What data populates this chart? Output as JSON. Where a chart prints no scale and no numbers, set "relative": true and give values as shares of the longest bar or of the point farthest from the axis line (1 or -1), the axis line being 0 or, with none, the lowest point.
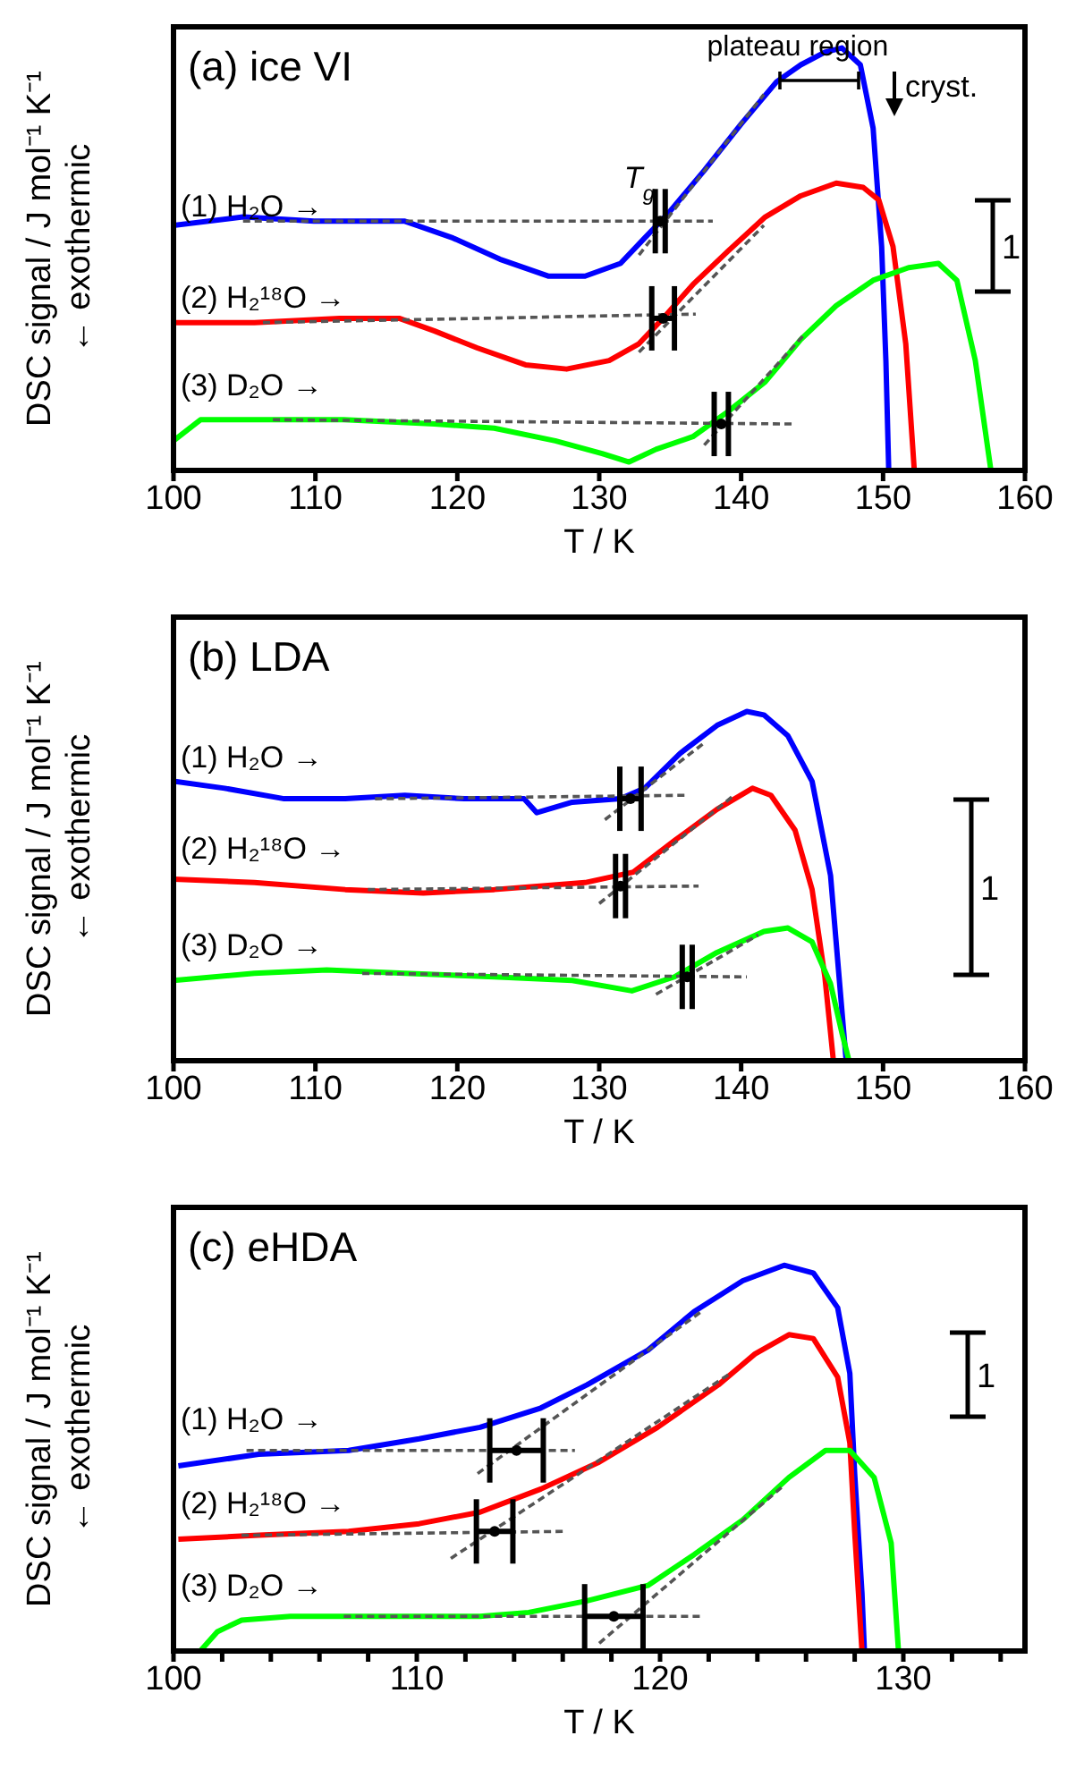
{
  "chart_data": [
    {
      "type": "line",
      "title": "(a) ice VI",
      "xlabel": "T / K",
      "ylabel": "DSC signal / J mol⁻¹ K⁻¹",
      "relative": true,
      "xlim": [
        100,
        160
      ],
      "xticks": [
        100,
        110,
        120,
        130,
        140,
        150,
        160
      ],
      "line_style": "solid",
      "annotations": [
        "plateau region",
        "cryst.",
        {
          "text": "T$_{g}$",
          "x": 133.9,
          "y": 0.67
        },
        "1",
        "← exothermic"
      ],
      "series": [
        {
          "name": "(1) H₂O →",
          "color": "#0000ff",
          "x": [
            100,
            104.9,
            109.9,
            116.3,
            119.7,
            123.0,
            126.4,
            129.0,
            131.5,
            133.2,
            134.9,
            137.4,
            140.0,
            142.5,
            144.2,
            145.9,
            147.1,
            148.4,
            149.3,
            149.9,
            150.2,
            150.4
          ],
          "values": [
            0.58,
            0.6,
            0.59,
            0.59,
            0.55,
            0.5,
            0.46,
            0.46,
            0.49,
            0.55,
            0.61,
            0.71,
            0.82,
            0.92,
            0.96,
            0.99,
            1.0,
            0.96,
            0.81,
            0.53,
            0.26,
            0
          ]
        },
        {
          "name": "(2) H₂¹⁸O →",
          "color": "#ff0000",
          "x": [
            100,
            105.7,
            111.7,
            115.9,
            118.4,
            121.4,
            124.8,
            127.7,
            130.7,
            132.8,
            134.5,
            136.6,
            139.1,
            141.7,
            144.2,
            146.7,
            148.6,
            149.7,
            150.7,
            151.6,
            152.2
          ],
          "values": [
            0.35,
            0.35,
            0.36,
            0.36,
            0.33,
            0.29,
            0.25,
            0.24,
            0.26,
            0.3,
            0.36,
            0.44,
            0.52,
            0.6,
            0.65,
            0.68,
            0.67,
            0.64,
            0.53,
            0.3,
            0
          ]
        },
        {
          "name": "(3) D₂O →",
          "color": "#00ff00",
          "x": [
            100,
            101.9,
            105.7,
            112.0,
            118.4,
            122.6,
            126.9,
            130.2,
            132.1,
            134.0,
            136.6,
            139.1,
            141.7,
            144.2,
            146.7,
            149.3,
            151.8,
            153.9,
            155.2,
            156.5,
            157.6
          ],
          "values": [
            0.07,
            0.12,
            0.12,
            0.12,
            0.11,
            0.1,
            0.07,
            0.04,
            0.02,
            0.05,
            0.08,
            0.14,
            0.21,
            0.31,
            0.39,
            0.45,
            0.48,
            0.49,
            0.45,
            0.26,
            0
          ]
        },
        {
          "type": "line",
          "color": "#555555",
          "line_style": "dashed",
          "x": [
            104.9,
            138.0
          ],
          "values": [
            0.59,
            0.59
          ]
        },
        {
          "type": "line",
          "color": "#555555",
          "line_style": "dashed",
          "x": [
            132.8,
            141.6
          ],
          "values": [
            0.51,
            0.89
          ]
        },
        {
          "type": "line",
          "color": "#555555",
          "line_style": "dashed",
          "x": [
            106.3,
            136.8
          ],
          "values": [
            0.35,
            0.37
          ]
        },
        {
          "type": "line",
          "color": "#555555",
          "line_style": "dashed",
          "x": [
            132.8,
            141.6
          ],
          "values": [
            0.28,
            0.58
          ]
        },
        {
          "type": "line",
          "color": "#555555",
          "line_style": "dashed",
          "x": [
            107.0,
            143.6
          ],
          "values": [
            0.12,
            0.11
          ]
        },
        {
          "type": "line",
          "color": "#555555",
          "line_style": "dashed",
          "x": [
            137.4,
            144.4
          ],
          "values": [
            0.06,
            0.32
          ]
        },
        {
          "type": "scatter",
          "color": "#000000",
          "marker": "circle",
          "x": [
            134.3,
            134.5,
            138.6
          ],
          "values": [
            0.59,
            0.36,
            0.11
          ],
          "xerrors": [
            0.35,
            0.8,
            0.5
          ]
        }
      ]
    },
    {
      "type": "line",
      "title": "(b) LDA",
      "xlabel": "T / K",
      "ylabel": "DSC signal / J mol⁻¹ K⁻¹",
      "relative": true,
      "xlim": [
        100,
        160
      ],
      "xticks": [
        100,
        110,
        120,
        130,
        140,
        150,
        160
      ],
      "line_style": "solid",
      "annotations": [
        "1",
        "← exothermic"
      ],
      "series": [
        {
          "name": "(1) H₂O →",
          "color": "#0000ff",
          "x": [
            100,
            103.6,
            107.8,
            112.1,
            116.3,
            120.5,
            124.7,
            125.6,
            128.1,
            131.5,
            133.2,
            135.7,
            138.3,
            140.4,
            141.6,
            143.3,
            145.0,
            146.3,
            146.9,
            147.4
          ],
          "values": [
            0.8,
            0.78,
            0.75,
            0.75,
            0.76,
            0.75,
            0.75,
            0.71,
            0.74,
            0.75,
            0.78,
            0.88,
            0.96,
            1.0,
            0.99,
            0.93,
            0.8,
            0.53,
            0.24,
            0
          ]
        },
        {
          "name": "(2) H₂¹⁸O →",
          "color": "#ff0000",
          "x": [
            100,
            105.7,
            112.1,
            117.6,
            122.6,
            129.0,
            132.4,
            135.3,
            138.3,
            140.8,
            142.1,
            143.8,
            145.0,
            145.9,
            146.5
          ],
          "values": [
            0.52,
            0.51,
            0.49,
            0.48,
            0.49,
            0.51,
            0.54,
            0.63,
            0.72,
            0.78,
            0.76,
            0.66,
            0.49,
            0.24,
            0
          ]
        },
        {
          "name": "(3) D₂O →",
          "color": "#00ff00",
          "x": [
            100,
            105.7,
            110.8,
            116.3,
            122.6,
            128.1,
            132.3,
            135.3,
            138.3,
            141.6,
            143.3,
            145.0,
            146.3,
            147.1,
            147.6
          ],
          "values": [
            0.23,
            0.25,
            0.26,
            0.25,
            0.24,
            0.23,
            0.2,
            0.24,
            0.31,
            0.37,
            0.38,
            0.34,
            0.22,
            0.08,
            0
          ]
        },
        {
          "type": "line",
          "color": "#555555",
          "line_style": "dashed",
          "x": [
            114.2,
            136.2
          ],
          "values": [
            0.75,
            0.76
          ]
        },
        {
          "type": "line",
          "color": "#555555",
          "line_style": "dashed",
          "x": [
            130.4,
            137.4
          ],
          "values": [
            0.69,
            0.91
          ]
        },
        {
          "type": "line",
          "color": "#555555",
          "line_style": "dashed",
          "x": [
            113.7,
            137.0
          ],
          "values": [
            0.49,
            0.5
          ]
        },
        {
          "type": "line",
          "color": "#555555",
          "line_style": "dashed",
          "x": [
            130.0,
            139.5
          ],
          "values": [
            0.45,
            0.76
          ]
        },
        {
          "type": "line",
          "color": "#555555",
          "line_style": "dashed",
          "x": [
            113.3,
            140.4
          ],
          "values": [
            0.25,
            0.24
          ]
        },
        {
          "type": "line",
          "color": "#555555",
          "line_style": "dashed",
          "x": [
            134.0,
            141.2
          ],
          "values": [
            0.19,
            0.36
          ]
        },
        {
          "type": "scatter",
          "color": "#000000",
          "marker": "circle",
          "x": [
            132.2,
            131.5,
            136.2
          ],
          "values": [
            0.75,
            0.5,
            0.24
          ],
          "xerrors": [
            0.75,
            0.35,
            0.35
          ]
        }
      ]
    },
    {
      "type": "line",
      "title": "(c) eHDA",
      "xlabel": "T / K",
      "ylabel": "DSC signal / J mol⁻¹ K⁻¹",
      "relative": true,
      "xlim": [
        100,
        135
      ],
      "xticks": [
        100,
        {
          "value": 102,
          "label": null
        },
        {
          "value": 104,
          "label": null
        },
        {
          "value": 106,
          "label": null
        },
        {
          "value": 108,
          "label": null
        },
        110,
        {
          "value": 112,
          "label": null
        },
        {
          "value": 114,
          "label": null
        },
        {
          "value": 116,
          "label": null
        },
        {
          "value": 118,
          "label": null
        },
        120,
        {
          "value": 122,
          "label": null
        },
        {
          "value": 124,
          "label": null
        },
        {
          "value": 126,
          "label": null
        },
        {
          "value": 128,
          "label": null
        },
        130,
        {
          "value": 132,
          "label": null
        },
        {
          "value": 134,
          "label": null
        }
      ],
      "line_style": "solid",
      "annotations": [
        "1",
        "← exothermic"
      ],
      "series": [
        {
          "name": "(1) H₂O →",
          "color": "#0000ff",
          "x": [
            100.2,
            103.5,
            107.2,
            110.1,
            112.6,
            115.1,
            117.0,
            119.5,
            121.4,
            123.4,
            125.1,
            126.3,
            127.3,
            127.8,
            128.0,
            128.3,
            128.4
          ],
          "values": [
            0.48,
            0.51,
            0.52,
            0.55,
            0.58,
            0.63,
            0.69,
            0.78,
            0.88,
            0.96,
            1.0,
            0.98,
            0.89,
            0.72,
            0.46,
            0.15,
            0
          ]
        },
        {
          "name": "(2) H₂¹⁸O →",
          "color": "#ff0000",
          "x": [
            100.2,
            103.5,
            107.2,
            110.1,
            112.6,
            115.1,
            117.5,
            119.9,
            122.4,
            123.9,
            125.3,
            126.3,
            127.3,
            127.8,
            128.0,
            128.3
          ],
          "values": [
            0.29,
            0.3,
            0.31,
            0.33,
            0.36,
            0.42,
            0.49,
            0.58,
            0.69,
            0.77,
            0.82,
            0.81,
            0.71,
            0.54,
            0.31,
            0
          ]
        },
        {
          "name": "(3) D₂O →",
          "color": "#00ff00",
          "x": [
            101.1,
            101.8,
            102.8,
            104.8,
            108.4,
            112.6,
            114.6,
            117.0,
            119.5,
            121.4,
            123.4,
            125.3,
            126.8,
            127.8,
            128.8,
            129.5,
            129.8
          ],
          "values": [
            0,
            0.05,
            0.08,
            0.09,
            0.09,
            0.09,
            0.1,
            0.13,
            0.17,
            0.25,
            0.34,
            0.45,
            0.52,
            0.52,
            0.45,
            0.28,
            0
          ]
        },
        {
          "type": "line",
          "color": "#555555",
          "line_style": "dashed",
          "x": [
            103.0,
            116.5
          ],
          "values": [
            0.52,
            0.52
          ]
        },
        {
          "type": "line",
          "color": "#555555",
          "line_style": "dashed",
          "x": [
            112.5,
            121.7
          ],
          "values": [
            0.46,
            0.88
          ]
        },
        {
          "type": "line",
          "color": "#555555",
          "line_style": "dashed",
          "x": [
            102.8,
            116.0
          ],
          "values": [
            0.3,
            0.31
          ]
        },
        {
          "type": "line",
          "color": "#555555",
          "line_style": "dashed",
          "x": [
            111.4,
            122.9
          ],
          "values": [
            0.24,
            0.72
          ]
        },
        {
          "type": "line",
          "color": "#555555",
          "line_style": "dashed",
          "x": [
            107.0,
            121.8
          ],
          "values": [
            0.09,
            0.09
          ]
        },
        {
          "type": "line",
          "color": "#555555",
          "line_style": "dashed",
          "x": [
            117.5,
            125.1
          ],
          "values": [
            0.02,
            0.43
          ]
        },
        {
          "type": "scatter",
          "color": "#000000",
          "marker": "circle",
          "x": [
            114.1,
            113.2,
            118.1
          ],
          "values": [
            0.52,
            0.31,
            0.09
          ],
          "xerrors": [
            1.1,
            0.75,
            1.2
          ]
        }
      ]
    }
  ]
}
